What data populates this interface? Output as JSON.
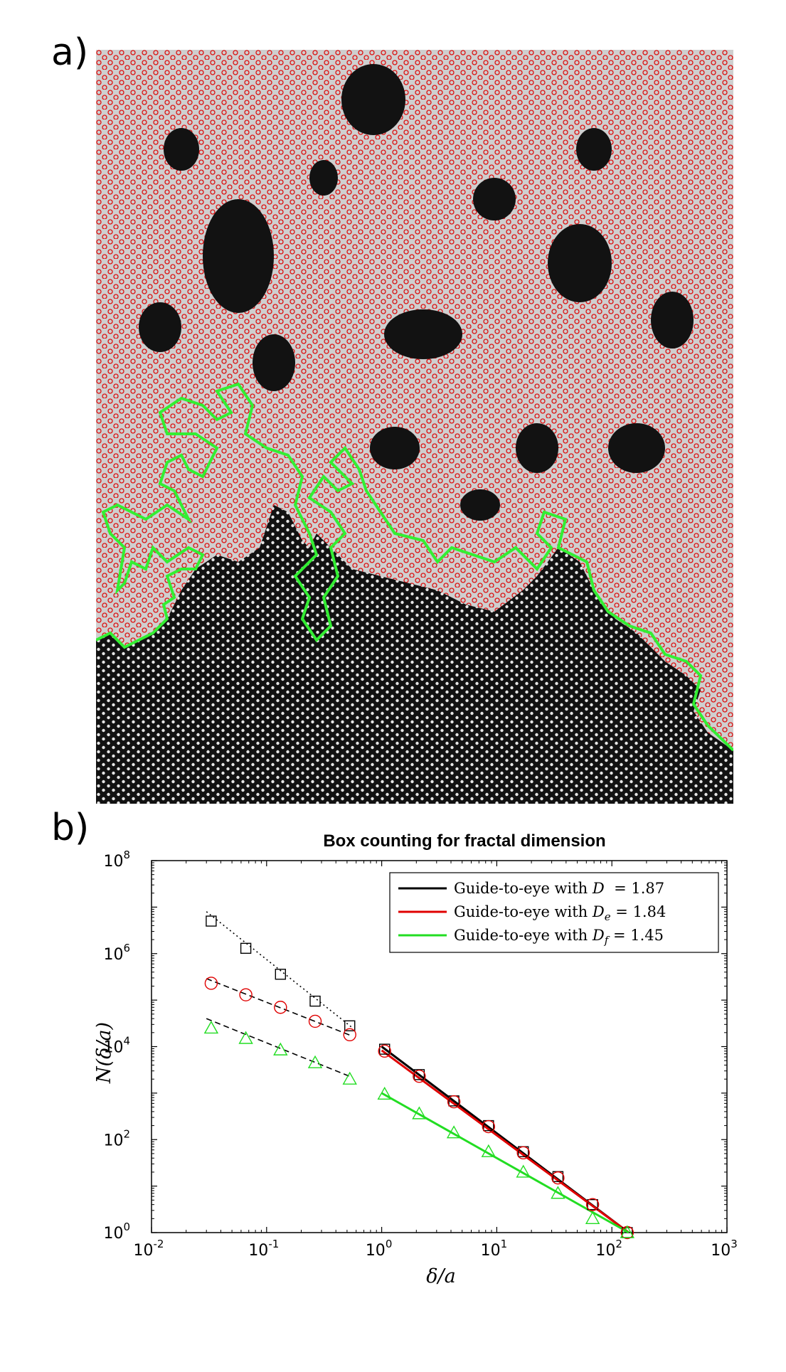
{
  "panels": {
    "a": "a)",
    "b": "b)"
  },
  "chart_data": {
    "type": "scatter",
    "title": "Box counting for fractal dimension",
    "xlabel": "δ/a",
    "ylabel": "N(δ/a)",
    "x_scale": "log",
    "y_scale": "log",
    "xlim": [
      0.01,
      1000
    ],
    "ylim": [
      1,
      100000000
    ],
    "x_ticks": [
      {
        "base": "10",
        "exp": "-2",
        "value": 0.01
      },
      {
        "base": "10",
        "exp": "-1",
        "value": 0.1
      },
      {
        "base": "10",
        "exp": "0",
        "value": 1
      },
      {
        "base": "10",
        "exp": "1",
        "value": 10
      },
      {
        "base": "10",
        "exp": "2",
        "value": 100
      },
      {
        "base": "10",
        "exp": "3",
        "value": 1000
      }
    ],
    "y_ticks": [
      {
        "base": "10",
        "exp": "0",
        "value": 1
      },
      {
        "base": "10",
        "exp": "2",
        "value": 100
      },
      {
        "base": "10",
        "exp": "4",
        "value": 10000
      },
      {
        "base": "10",
        "exp": "6",
        "value": 1000000
      },
      {
        "base": "10",
        "exp": "8",
        "value": 100000000
      }
    ],
    "legend_position": "top-right",
    "legend": [
      {
        "prefix": "Guide-to-eye with ",
        "symbol": "D",
        "sub": "",
        "value": " = 1.87",
        "color": "#000000"
      },
      {
        "prefix": "Guide-to-eye with ",
        "symbol": "D",
        "sub": "e",
        "value": " = 1.84",
        "color": "#e00000"
      },
      {
        "prefix": "Guide-to-eye with ",
        "symbol": "D",
        "sub": "f",
        "value": " = 1.45",
        "color": "#22dd22"
      }
    ],
    "series": [
      {
        "marker": "square",
        "color": "#000000",
        "x": [
          0.033,
          0.066,
          0.132,
          0.264,
          0.528,
          1.06,
          2.12,
          4.24,
          8.48,
          17,
          34,
          68,
          136
        ],
        "y": [
          5000000,
          1300000,
          360000,
          95000,
          28000,
          8800,
          2500,
          680,
          200,
          55,
          16,
          4,
          1
        ]
      },
      {
        "marker": "circle",
        "color": "#e00000",
        "x": [
          0.033,
          0.066,
          0.132,
          0.264,
          0.528,
          1.06,
          2.12,
          4.24,
          8.48,
          17,
          34,
          68,
          136
        ],
        "y": [
          230000,
          130000,
          70000,
          35000,
          18000,
          8000,
          2300,
          650,
          190,
          52,
          15,
          4,
          1
        ]
      },
      {
        "marker": "triangle",
        "color": "#22dd22",
        "x": [
          0.033,
          0.066,
          0.132,
          0.264,
          0.528,
          1.06,
          2.12,
          4.24,
          8.48,
          17,
          34,
          68,
          136
        ],
        "y": [
          25000,
          15000,
          8500,
          4500,
          2000,
          950,
          360,
          140,
          55,
          20,
          7,
          2,
          1
        ]
      }
    ],
    "guide_lines": [
      {
        "color": "#000000",
        "style": "dotted",
        "x": [
          0.03,
          0.55
        ],
        "y": [
          8000000,
          26000
        ]
      },
      {
        "color": "#000000",
        "style": "dashed",
        "x": [
          0.03,
          0.55
        ],
        "y": [
          290000,
          17000
        ]
      },
      {
        "color": "#000000",
        "style": "dashed",
        "x": [
          0.03,
          0.55
        ],
        "y": [
          40000,
          2200
        ]
      },
      {
        "color": "#000000",
        "style": "solid",
        "x": [
          1.0,
          140
        ],
        "y": [
          10000,
          1
        ]
      },
      {
        "color": "#e00000",
        "style": "solid",
        "x": [
          1.0,
          140
        ],
        "y": [
          8300,
          1
        ]
      },
      {
        "color": "#22dd22",
        "style": "solid",
        "x": [
          1.0,
          140
        ],
        "y": [
          1000,
          1
        ]
      }
    ]
  }
}
